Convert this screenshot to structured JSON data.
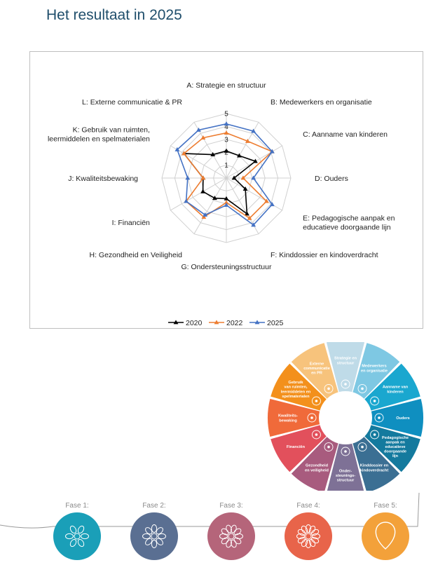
{
  "page": {
    "title": "Het resultaat in 2025"
  },
  "chart_data": {
    "type": "radar",
    "axes": [
      "A: Strategie en structuur",
      "B: Medewerkers en organisatie",
      "C: Aanname van kinderen",
      "D: Ouders",
      "E: Pedagogische aanpak en educatieve doorgaande lijn",
      "F: Kinddossier en kindoverdracht",
      "G: Ondersteuningsstructuur",
      "H: Gezondheid en Veiligheid",
      "I: Financiën",
      "J: Kwaliteitsbewaking",
      "K: Gebruik van ruimten, leermiddelen en spelmaterialen",
      "L: Externe communicatie & PR"
    ],
    "axis_label_lines": [
      [
        "A: Strategie en structuur"
      ],
      [
        "B: Medewerkers en organisatie"
      ],
      [
        "C: Aanname van kinderen"
      ],
      [
        "D: Ouders"
      ],
      [
        "E: Pedagogische aanpak en",
        "educatieve doorgaande lijn"
      ],
      [
        "F: Kinddossier en kindoverdracht"
      ],
      [
        "G: Ondersteuningsstructuur"
      ],
      [
        "H: Gezondheid en Veiligheid"
      ],
      [
        "I: Financiën"
      ],
      [
        "J: Kwaliteitsbewaking"
      ],
      [
        "K: Gebruik van ruimten,",
        "leermiddelen en spelmaterialen"
      ],
      [
        "L: Externe communicatie & PR"
      ]
    ],
    "rlim": [
      0,
      5
    ],
    "ticks": [
      "1",
      "2",
      "3",
      "4",
      "5"
    ],
    "series": [
      {
        "name": "2020",
        "color": "#000000",
        "values": [
          2.1,
          2.0,
          2.6,
          0.6,
          1.7,
          3.2,
          1.6,
          1.8,
          2.1,
          1.8,
          3.8,
          2.1
        ]
      },
      {
        "name": "2022",
        "color": "#ed7d31",
        "values": [
          3.5,
          3.3,
          4.1,
          1.3,
          3.6,
          3.6,
          1.9,
          3.5,
          3.6,
          1.8,
          3.8,
          3.6
        ]
      },
      {
        "name": "2025",
        "color": "#4472c4",
        "values": [
          4.2,
          4.2,
          4.1,
          2.1,
          4.1,
          4.2,
          2.1,
          3.3,
          3.6,
          3.0,
          4.4,
          4.3
        ]
      }
    ],
    "legend_position": "bottom",
    "grid": true
  },
  "wheel": {
    "segments": [
      {
        "lines": [
          "Strategie en",
          "structuur"
        ],
        "color": "#bfdbe8",
        "icon": "network-icon"
      },
      {
        "lines": [
          "Medewerkers",
          "en organisatie"
        ],
        "color": "#7ec8e3",
        "icon": "people-icon"
      },
      {
        "lines": [
          "Aanname van",
          "kinderen"
        ],
        "color": "#1aa7cf",
        "icon": "children-icon"
      },
      {
        "lines": [
          "Ouders"
        ],
        "color": "#0f8fc0",
        "icon": "parents-icon"
      },
      {
        "lines": [
          "Pedagogische",
          "aanpak en",
          "educatieve",
          "doorgaande",
          "lijn"
        ],
        "color": "#147a9e",
        "icon": "growth-icon"
      },
      {
        "lines": [
          "Kinddossier en",
          "kindoverdracht"
        ],
        "color": "#3b6f93",
        "icon": "folder-icon"
      },
      {
        "lines": [
          "Onder-",
          "steunings-",
          "structuur"
        ],
        "color": "#7e7196",
        "icon": "support-icon"
      },
      {
        "lines": [
          "Gezondheid",
          "en veiligheid"
        ],
        "color": "#a85b7e",
        "icon": "shield-icon"
      },
      {
        "lines": [
          "Financiën"
        ],
        "color": "#e2505c",
        "icon": "piggy-bank-icon"
      },
      {
        "lines": [
          "Kwaliteits-",
          "bewaking"
        ],
        "color": "#f06a3a",
        "icon": "checklist-icon"
      },
      {
        "lines": [
          "Gebruik",
          "van ruimten,",
          "leermiddelen en",
          "spelmaterialen"
        ],
        "color": "#f3901c",
        "icon": "blocks-icon"
      },
      {
        "lines": [
          "Externe",
          "communicatie",
          "en PR"
        ],
        "color": "#f7c37c",
        "icon": "megaphone-icon"
      }
    ]
  },
  "phases": [
    {
      "label": "Fase 1:",
      "color": "#1a9fb8"
    },
    {
      "label": "Fase 2:",
      "color": "#5a6f92"
    },
    {
      "label": "Fase 3:",
      "color": "#b5657a"
    },
    {
      "label": "Fase 4:",
      "color": "#e8644a"
    },
    {
      "label": "Fase 5:",
      "color": "#f3a13a"
    }
  ]
}
